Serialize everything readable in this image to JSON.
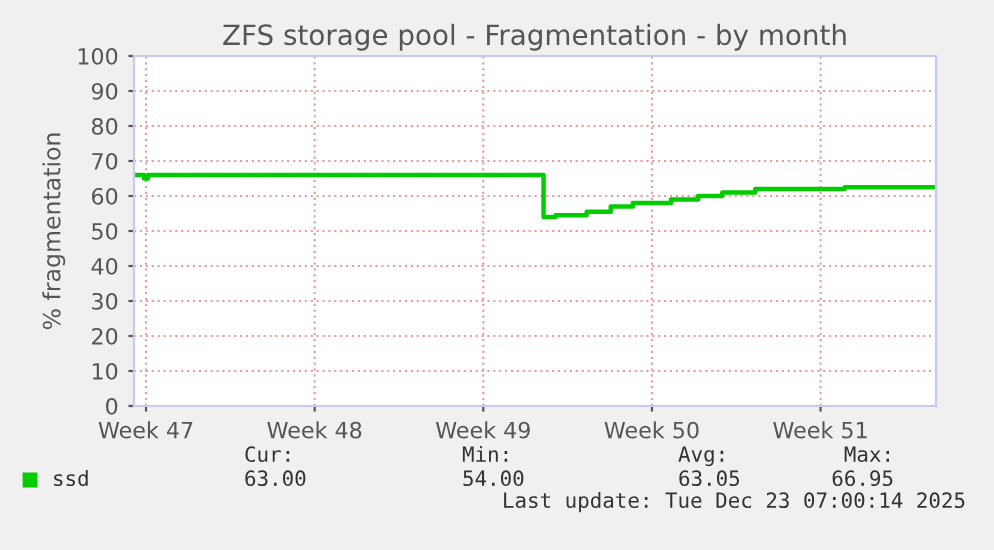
{
  "chart_data": {
    "type": "step",
    "title": "ZFS storage pool - Fragmentation - by month",
    "ylabel": "% fragmentation",
    "xlim": [
      "2025-11-20T00:00",
      "2025-12-23T07:00"
    ],
    "xticks": [
      {
        "value": "2025-11-20T12:00",
        "label": "Week 47"
      },
      {
        "value": "2025-11-27T12:00",
        "label": "Week 48"
      },
      {
        "value": "2025-12-04T12:00",
        "label": "Week 49"
      },
      {
        "value": "2025-12-11T12:00",
        "label": "Week 50"
      },
      {
        "value": "2025-12-18T12:00",
        "label": "Week 51"
      }
    ],
    "ylim": [
      0,
      100
    ],
    "yticks": [
      0,
      10,
      20,
      30,
      40,
      50,
      60,
      70,
      80,
      90,
      100
    ],
    "grid": true,
    "legend": "bottom left",
    "series": [
      {
        "name": "ssd",
        "color": "#00cc00",
        "x": [
          "2025-11-20T00:00",
          "2025-11-20T10:00",
          "2025-11-20T14:00",
          "2025-12-06T19:00",
          "2025-12-07T00:00",
          "2025-12-07T12:00",
          "2025-12-08T19:00",
          "2025-12-09T19:00",
          "2025-12-10T17:00",
          "2025-12-12T07:00",
          "2025-12-13T10:00",
          "2025-12-14T10:00",
          "2025-12-15T19:00",
          "2025-12-19T12:00",
          "2025-12-23T05:00"
        ],
        "values": [
          66,
          65,
          66,
          66,
          54,
          54.5,
          55.5,
          57,
          58,
          59,
          60,
          61,
          62,
          62.5,
          62.5
        ]
      }
    ],
    "annotations": [
      "Cur:",
      "63.00",
      "Min:",
      "54.00",
      "Avg:",
      "63.05",
      "Max:",
      "66.95",
      "Last update: Tue Dec 23 07:00:14 2025"
    ]
  }
}
